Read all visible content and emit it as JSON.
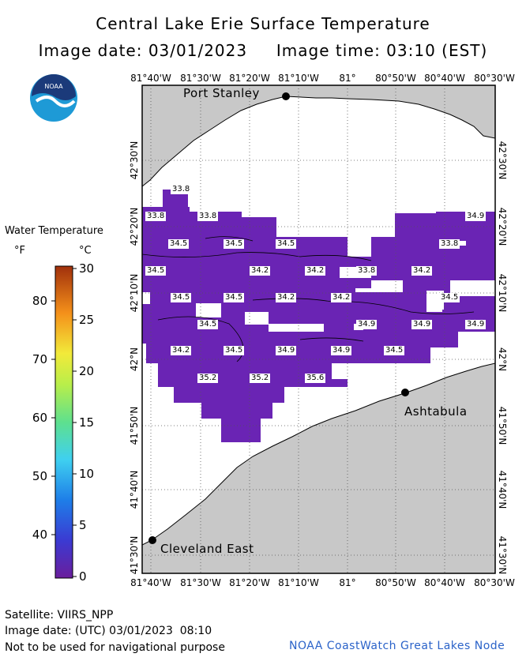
{
  "title": "Central Lake Erie Surface Temperature",
  "image_date_label": "Image date: 03/01/2023",
  "image_time_label": "Image time: 03:10 (EST)",
  "lon_labels": [
    "81°40'W",
    "81°30'W",
    "81°20'W",
    "81°10'W",
    "81°",
    "80°50'W",
    "80°40'W",
    "80°30'W"
  ],
  "lat_labels": [
    "42°30'N",
    "42°20'N",
    "42°10'N",
    "42°N",
    "41°50'N",
    "41°40'N",
    "41°30'N"
  ],
  "places": [
    {
      "name": "Port Stanley"
    },
    {
      "name": "Ashtabula"
    },
    {
      "name": "Cleveland East"
    }
  ],
  "temperatures": [
    "33.8",
    "33.8",
    "33.8",
    "34.9",
    "34.5",
    "34.5",
    "34.5",
    "33.8",
    "34.5",
    "34.2",
    "34.2",
    "33.8",
    "34.2",
    "34.5",
    "34.5",
    "34.2",
    "34.2",
    "34.5",
    "34.5",
    "34.9",
    "34.9",
    "34.9",
    "34.2",
    "34.5",
    "34.9",
    "34.9",
    "34.5",
    "35.2",
    "35.2",
    "35.6"
  ],
  "legend": {
    "title": "Water Temperature",
    "f_unit": "°F",
    "c_unit": "°C",
    "f_ticks": [
      "80",
      "70",
      "60",
      "50",
      "40"
    ],
    "c_ticks": [
      "30",
      "25",
      "20",
      "15",
      "10",
      "5",
      "0"
    ]
  },
  "footer": {
    "satellite": "Satellite: VIIRS_NPP",
    "utc_date": "Image date: (UTC) 03/01/2023  08:10",
    "disclaimer": "Not to be used for navigational purpose",
    "credit": "NOAA CoastWatch Great Lakes Node"
  },
  "colors": {
    "land": "#c8c8c8",
    "water_temp": "#6a24b4",
    "logo_blue": "#1e9ad6",
    "logo_navy": "#1b3a7a",
    "credit": "#2b63c9"
  }
}
